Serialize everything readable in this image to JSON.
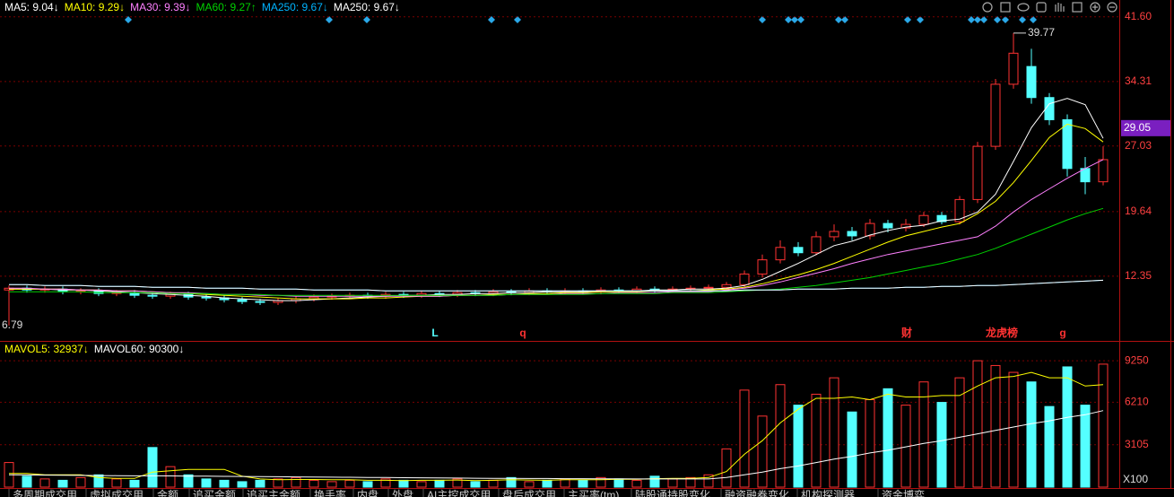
{
  "chart_data": [
    {
      "type": "candlestick",
      "up_color": "#ff3232",
      "down_color": "#54ffff",
      "ylim": [
        5.26,
        43.5
      ],
      "yticks": [
        {
          "value": 41.6,
          "label": "41.60"
        },
        34.31,
        27.03,
        19.64,
        12.35
      ],
      "grid": true,
      "last_price": 29.05,
      "open": [
        10.8,
        11.0,
        10.8,
        10.9,
        10.6,
        10.7,
        10.4,
        10.5,
        10.2,
        10.1,
        10.3,
        10.0,
        9.9,
        9.7,
        9.5,
        9.4,
        9.6,
        9.8,
        10.0,
        10.1,
        10.2,
        10.1,
        10.3,
        10.2,
        10.4,
        10.3,
        10.5,
        10.4,
        10.6,
        10.5,
        10.7,
        10.6,
        10.7,
        10.6,
        10.8,
        10.7,
        10.9,
        10.8,
        10.9,
        11.0,
        11.1,
        11.4,
        12.6,
        14.2,
        15.6,
        15.0,
        16.8,
        17.4,
        16.9,
        18.3,
        17.8,
        18.2,
        19.2,
        18.5,
        21.0,
        27.0,
        34.0,
        36.0,
        32.5,
        30.0,
        24.5,
        23.0
      ],
      "close": [
        11.0,
        10.8,
        10.9,
        10.6,
        10.7,
        10.4,
        10.5,
        10.2,
        10.1,
        10.3,
        10.0,
        9.9,
        9.7,
        9.5,
        9.4,
        9.6,
        9.8,
        10.0,
        10.1,
        10.2,
        10.1,
        10.3,
        10.2,
        10.4,
        10.3,
        10.5,
        10.4,
        10.6,
        10.5,
        10.7,
        10.6,
        10.7,
        10.6,
        10.8,
        10.7,
        10.9,
        10.8,
        10.9,
        11.0,
        11.1,
        11.4,
        12.6,
        14.2,
        15.6,
        15.0,
        16.8,
        17.4,
        16.9,
        18.3,
        17.8,
        18.2,
        19.2,
        18.5,
        21.0,
        27.0,
        34.0,
        37.5,
        32.5,
        30.0,
        24.5,
        23.0,
        25.5
      ],
      "high": [
        11.3,
        11.3,
        11.2,
        11.2,
        11.0,
        11.0,
        10.8,
        10.8,
        10.5,
        10.6,
        10.6,
        10.3,
        10.2,
        10.0,
        9.8,
        9.9,
        10.1,
        10.3,
        10.4,
        10.5,
        10.5,
        10.6,
        10.6,
        10.7,
        10.7,
        10.8,
        10.8,
        10.9,
        10.9,
        11.0,
        11.0,
        11.0,
        11.0,
        11.1,
        11.1,
        11.2,
        11.2,
        11.2,
        11.3,
        11.4,
        11.7,
        13.0,
        14.8,
        16.4,
        16.2,
        17.4,
        18.2,
        17.9,
        18.8,
        18.7,
        18.8,
        19.6,
        19.6,
        21.4,
        27.5,
        34.6,
        39.77,
        38.0,
        33.0,
        30.6,
        25.8,
        27.0
      ],
      "low": [
        6.79,
        10.5,
        10.5,
        10.3,
        10.3,
        10.1,
        10.1,
        9.9,
        9.8,
        9.8,
        9.7,
        9.6,
        9.4,
        9.2,
        9.1,
        9.1,
        9.3,
        9.5,
        9.7,
        9.8,
        9.8,
        9.8,
        9.9,
        9.9,
        10.0,
        10.0,
        10.1,
        10.1,
        10.2,
        10.2,
        10.3,
        10.3,
        10.3,
        10.3,
        10.4,
        10.4,
        10.5,
        10.5,
        10.6,
        10.7,
        10.8,
        11.1,
        12.2,
        13.8,
        14.6,
        14.7,
        16.3,
        16.4,
        16.5,
        17.3,
        17.4,
        17.9,
        18.2,
        18.2,
        20.6,
        26.6,
        33.5,
        31.8,
        29.4,
        23.6,
        21.6,
        22.6
      ],
      "series": [
        {
          "name": "MA5: 9.04↓",
          "color": "#ffffff",
          "values": [
            10.9,
            10.9,
            10.9,
            10.8,
            10.8,
            10.7,
            10.6,
            10.5,
            10.4,
            10.3,
            10.2,
            10.1,
            9.9,
            9.8,
            9.7,
            9.6,
            9.6,
            9.7,
            9.8,
            9.9,
            10.0,
            10.1,
            10.2,
            10.2,
            10.3,
            10.3,
            10.4,
            10.4,
            10.5,
            10.5,
            10.6,
            10.6,
            10.6,
            10.7,
            10.7,
            10.7,
            10.8,
            10.8,
            10.9,
            10.9,
            11.0,
            11.3,
            12.0,
            12.9,
            13.8,
            14.8,
            15.8,
            16.3,
            17.0,
            17.5,
            17.9,
            18.1,
            18.6,
            18.8,
            19.6,
            21.6,
            25.3,
            29.1,
            31.8,
            32.4,
            31.7,
            27.9
          ]
        },
        {
          "name": "MA10: 9.29↓",
          "color": "#ffff00",
          "values": [
            10.9,
            10.9,
            10.9,
            10.9,
            10.8,
            10.8,
            10.7,
            10.7,
            10.6,
            10.5,
            10.4,
            10.3,
            10.2,
            10.1,
            10.0,
            9.9,
            9.8,
            9.8,
            9.8,
            9.8,
            9.9,
            9.9,
            10.0,
            10.1,
            10.1,
            10.2,
            10.2,
            10.3,
            10.3,
            10.4,
            10.4,
            10.5,
            10.5,
            10.6,
            10.6,
            10.6,
            10.7,
            10.7,
            10.7,
            10.8,
            10.9,
            11.1,
            11.5,
            12.0,
            12.5,
            13.1,
            13.8,
            14.6,
            15.4,
            16.2,
            16.9,
            17.4,
            17.9,
            18.3,
            19.4,
            20.8,
            22.9,
            25.4,
            28.0,
            29.5,
            29.0,
            27.5
          ]
        },
        {
          "name": "MA30: 9.39↓",
          "color": "#ff80ff",
          "values": [
            11.0,
            11.0,
            10.9,
            10.9,
            10.8,
            10.8,
            10.7,
            10.7,
            10.6,
            10.5,
            10.5,
            10.4,
            10.3,
            10.3,
            10.2,
            10.2,
            10.1,
            10.1,
            10.1,
            10.1,
            10.1,
            10.1,
            10.1,
            10.1,
            10.1,
            10.2,
            10.2,
            10.2,
            10.3,
            10.3,
            10.3,
            10.4,
            10.4,
            10.4,
            10.5,
            10.5,
            10.5,
            10.6,
            10.6,
            10.6,
            10.8,
            11.0,
            11.3,
            11.7,
            12.2,
            12.7,
            13.2,
            13.8,
            14.3,
            14.8,
            15.2,
            15.6,
            16.0,
            16.4,
            16.8,
            18.0,
            19.6,
            21.0,
            22.2,
            23.4,
            24.5,
            25.5
          ]
        },
        {
          "name": "MA60: 9.27↑",
          "color": "#00d200",
          "values": [
            10.6,
            10.6,
            10.6,
            10.6,
            10.6,
            10.5,
            10.5,
            10.5,
            10.5,
            10.4,
            10.4,
            10.4,
            10.3,
            10.3,
            10.3,
            10.2,
            10.2,
            10.2,
            10.2,
            10.2,
            10.2,
            10.2,
            10.2,
            10.2,
            10.2,
            10.2,
            10.2,
            10.2,
            10.3,
            10.3,
            10.3,
            10.3,
            10.3,
            10.4,
            10.4,
            10.4,
            10.4,
            10.5,
            10.5,
            10.5,
            10.6,
            10.7,
            10.8,
            10.9,
            11.1,
            11.3,
            11.6,
            11.9,
            12.2,
            12.6,
            13.0,
            13.4,
            13.8,
            14.3,
            14.8,
            15.5,
            16.3,
            17.1,
            17.9,
            18.7,
            19.4,
            20.0
          ]
        },
        {
          "name": "MA250: 9.67↓",
          "color": "#00b4ff",
          "values": [
            11.4,
            11.4,
            11.3,
            11.3,
            11.3,
            11.2,
            11.2,
            11.2,
            11.1,
            11.1,
            11.1,
            11.0,
            11.0,
            11.0,
            10.9,
            10.9,
            10.9,
            10.8,
            10.8,
            10.8,
            10.8,
            10.7,
            10.7,
            10.7,
            10.7,
            10.7,
            10.7,
            10.7,
            10.7,
            10.7,
            10.7,
            10.7,
            10.7,
            10.7,
            10.7,
            10.7,
            10.7,
            10.7,
            10.7,
            10.7,
            10.7,
            10.8,
            10.8,
            10.8,
            10.9,
            10.9,
            10.9,
            11.0,
            11.0,
            11.0,
            11.1,
            11.1,
            11.2,
            11.2,
            11.3,
            11.3,
            11.4,
            11.5,
            11.6,
            11.7,
            11.8,
            11.9
          ]
        },
        {
          "name": "MA250: 9.67↓",
          "color": "#ffffff",
          "values": [
            11.4,
            11.4,
            11.3,
            11.3,
            11.3,
            11.2,
            11.2,
            11.2,
            11.1,
            11.1,
            11.1,
            11.0,
            11.0,
            11.0,
            10.9,
            10.9,
            10.9,
            10.8,
            10.8,
            10.8,
            10.8,
            10.7,
            10.7,
            10.7,
            10.7,
            10.7,
            10.7,
            10.7,
            10.7,
            10.7,
            10.7,
            10.7,
            10.7,
            10.7,
            10.7,
            10.7,
            10.7,
            10.7,
            10.7,
            10.7,
            10.7,
            10.8,
            10.8,
            10.8,
            10.9,
            10.9,
            10.9,
            11.0,
            11.0,
            11.0,
            11.1,
            11.1,
            11.2,
            11.2,
            11.3,
            11.3,
            11.4,
            11.5,
            11.6,
            11.7,
            11.8,
            11.9
          ]
        }
      ],
      "markers": [
        {
          "text": "L",
          "color": "#54ffff"
        },
        {
          "text": "q",
          "color": "#ff3232"
        },
        {
          "text": "财",
          "color": "#ff3232"
        },
        {
          "text": "龙虎榜",
          "color": "#ff3232"
        },
        {
          "text": "g",
          "color": "#ff3232"
        }
      ]
    },
    {
      "type": "bar",
      "unit": "X100",
      "ylim": [
        0,
        10570
      ],
      "yticks": [
        9250,
        6210,
        3105
      ],
      "values": [
        1800,
        800,
        600,
        500,
        700,
        900,
        600,
        500,
        2900,
        1500,
        900,
        600,
        500,
        400,
        500,
        600,
        700,
        500,
        400,
        500,
        400,
        600,
        500,
        400,
        500,
        600,
        400,
        500,
        700,
        400,
        500,
        600,
        500,
        700,
        600,
        500,
        800,
        600,
        700,
        900,
        2800,
        7100,
        5200,
        7500,
        6000,
        6800,
        8000,
        5500,
        6400,
        7200,
        6000,
        7700,
        6200,
        8000,
        9250,
        8900,
        8400,
        7700,
        5900,
        8800,
        6000,
        9000
      ],
      "series": [
        {
          "name": "MAVOL5: 32937↓",
          "color": "#ffff00",
          "values": [
            1000,
            1000,
            900,
            900,
            900,
            700,
            640,
            640,
            1100,
            1200,
            1300,
            1300,
            1300,
            800,
            600,
            540,
            560,
            560,
            540,
            540,
            500,
            500,
            480,
            500,
            500,
            520,
            480,
            500,
            540,
            520,
            500,
            540,
            540,
            540,
            580,
            580,
            620,
            640,
            640,
            700,
            1140,
            2400,
            3400,
            4700,
            5700,
            6500,
            6500,
            6600,
            6400,
            6800,
            6600,
            6600,
            6700,
            6700,
            7400,
            8000,
            8100,
            8400,
            8000,
            8000,
            7400,
            7500
          ]
        },
        {
          "name": "MAVOL60: 90300↓",
          "color": "#ffffff",
          "values": [
            900,
            890,
            880,
            870,
            860,
            850,
            840,
            830,
            830,
            820,
            810,
            800,
            790,
            780,
            770,
            760,
            750,
            740,
            730,
            720,
            710,
            700,
            690,
            680,
            670,
            660,
            650,
            640,
            640,
            630,
            630,
            620,
            620,
            610,
            610,
            600,
            600,
            600,
            600,
            600,
            700,
            900,
            1100,
            1350,
            1550,
            1800,
            2050,
            2250,
            2500,
            2700,
            2950,
            3200,
            3400,
            3650,
            3900,
            4150,
            4400,
            4650,
            4850,
            5100,
            5300,
            5600
          ]
        }
      ]
    }
  ],
  "tabs": [
    "多周期成交用",
    "虚拟成交用",
    "金额",
    "追买金额",
    "追买主金额",
    "换手率",
    "内盘",
    "外盘",
    "AI主控成交用",
    "盘后成交用",
    "主买率(tm)",
    "陆股通持股变化",
    "融资融券变化",
    "机构探测器",
    "资金博弈"
  ]
}
